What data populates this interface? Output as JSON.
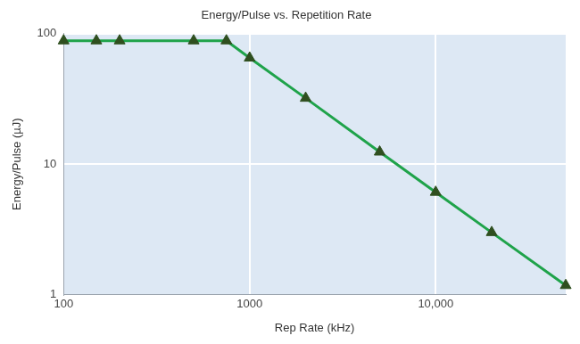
{
  "chart_data": {
    "type": "line",
    "title": "Energy/Pulse vs. Repetition Rate",
    "x_label": "Rep Rate (kHz)",
    "y_label": "Energy/Pulse (µJ)",
    "x": [
      100,
      150,
      200,
      500,
      750,
      1000,
      2000,
      5000,
      10000,
      20000,
      50000
    ],
    "values": [
      88,
      88,
      88,
      88,
      88,
      65,
      32,
      12.4,
      6.1,
      3.0,
      1.18
    ],
    "color": "#1fa34a",
    "marker": "triangle",
    "log": true,
    "grid": true,
    "xlim": [
      100,
      50000
    ],
    "ylim": [
      1,
      100
    ],
    "xticks": [
      100,
      1000,
      {
        "value": 10000,
        "label": "10,000"
      }
    ],
    "yticks": [
      1,
      10,
      100
    ]
  }
}
